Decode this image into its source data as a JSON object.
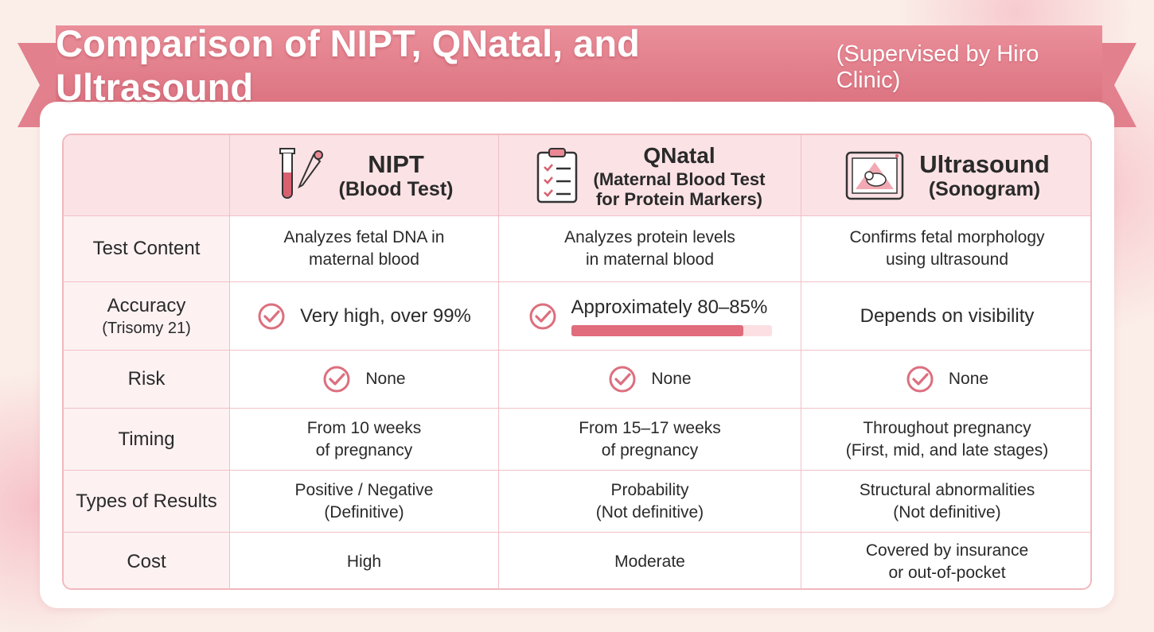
{
  "header": {
    "title": "Comparison of NIPT, QNatal, and Ultrasound",
    "subtitle": "(Supervised by Hiro Clinic)"
  },
  "table": {
    "columns": [
      {
        "name": "NIPT",
        "detail": [
          "(Blood Test)"
        ]
      },
      {
        "name": "QNatal",
        "detail": [
          "(Maternal Blood Test",
          "for Protein Markers)"
        ]
      },
      {
        "name": "Ultrasound",
        "detail": [
          "(Sonogram)"
        ]
      }
    ],
    "rows": [
      {
        "label": [
          "Test Content"
        ],
        "cells": [
          [
            "Analyzes fetal DNA in",
            "maternal blood"
          ],
          [
            "Analyzes protein levels",
            "in maternal blood"
          ],
          [
            "Confirms fetal morphology",
            "using ultrasound"
          ]
        ]
      },
      {
        "label": [
          "Accuracy",
          "(Trisomy 21)"
        ],
        "cells": [
          [
            "Very high, over 99%"
          ],
          [
            "Approximately 80–85%"
          ],
          [
            "Depends on visibility"
          ]
        ]
      },
      {
        "label": [
          "Risk"
        ],
        "cells": [
          [
            "None"
          ],
          [
            "None"
          ],
          [
            "None"
          ]
        ]
      },
      {
        "label": [
          "Timing"
        ],
        "cells": [
          [
            "From 10 weeks",
            "of pregnancy"
          ],
          [
            "From 15–17 weeks",
            "of pregnancy"
          ],
          [
            "Throughout pregnancy",
            "(First, mid, and late stages)"
          ]
        ]
      },
      {
        "label": [
          "Types of Results"
        ],
        "cells": [
          [
            "Positive / Negative",
            "(Definitive)"
          ],
          [
            "Probability",
            "(Not definitive)"
          ],
          [
            "Structural abnormalities",
            "(Not definitive)"
          ]
        ]
      },
      {
        "label": [
          "Cost"
        ],
        "cells": [
          [
            "High"
          ],
          [
            "Moderate"
          ],
          [
            "Covered by insurance",
            "or out-of-pocket"
          ]
        ]
      }
    ]
  }
}
